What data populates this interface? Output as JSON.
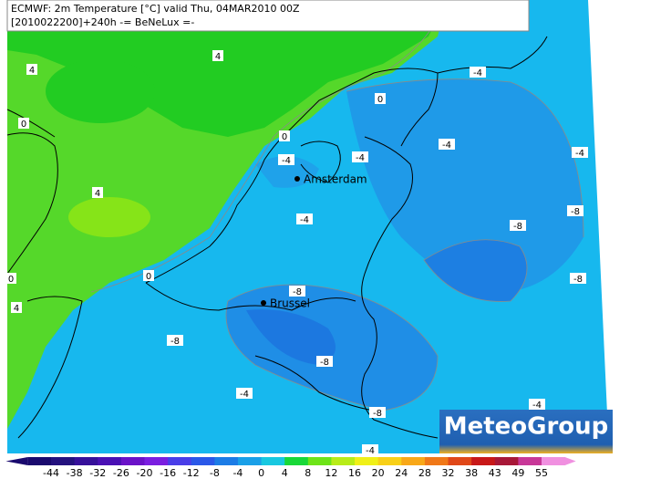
{
  "header": {
    "line1": "ECMWF: 2m Temperature [°C] valid Thu, 04MAR2010 00Z",
    "line2": "[2010022200]+240h -= BeNeLux =-"
  },
  "cities": [
    {
      "label": "Amsterdam"
    },
    {
      "label": "Brussel"
    }
  ],
  "contour_labels": [
    "4",
    "4",
    "0",
    "4",
    "0",
    "0",
    "-4",
    "-4",
    "-4",
    "-4",
    "-4",
    "-4",
    "-8",
    "-8",
    "0",
    "4",
    "0",
    "-8",
    "-8",
    "-8",
    "-8",
    "-4",
    "-8",
    "-4",
    "-4"
  ],
  "colorbar": {
    "ticks": [
      -44,
      -38,
      -32,
      -26,
      -20,
      -16,
      -12,
      -8,
      -4,
      0,
      4,
      8,
      12,
      16,
      20,
      24,
      28,
      32,
      38,
      43,
      49,
      55
    ],
    "colors": [
      "#1a0a6e",
      "#24127e",
      "#36109a",
      "#4a10b4",
      "#6a12c8",
      "#7a1ee0",
      "#4a3ee8",
      "#2a58e8",
      "#1c7ce6",
      "#1aa0e8",
      "#18c8e0",
      "#18d838",
      "#6ee418",
      "#b8ec18",
      "#f0f018",
      "#f8d018",
      "#f8a818",
      "#f07818",
      "#e04818",
      "#c81818",
      "#a81838",
      "#c83898",
      "#f090e0"
    ]
  },
  "logo": "MeteoGroup"
}
